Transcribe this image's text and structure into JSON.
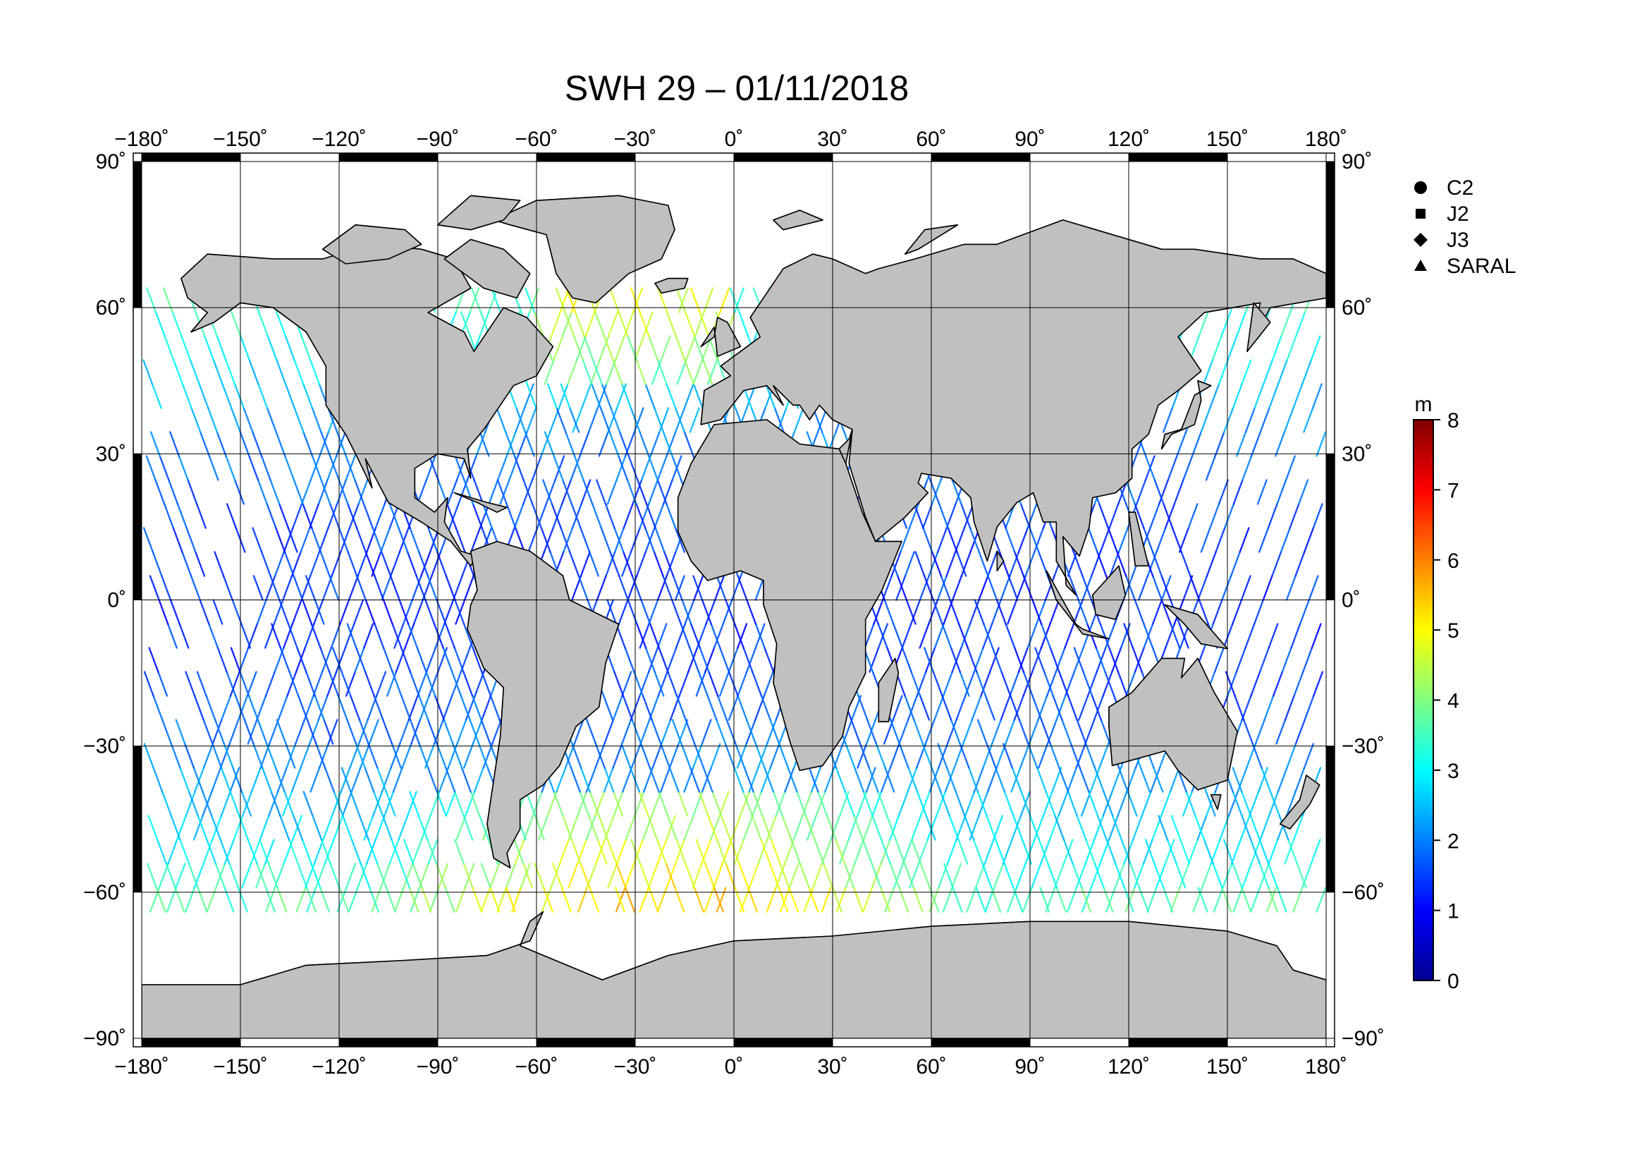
{
  "title": "SWH 29 – 01/11/2018",
  "map": {
    "lon_labels": [
      "−180˚",
      "−150˚",
      "−120˚",
      "−90˚",
      "−60˚",
      "−30˚",
      "0˚",
      "30˚",
      "60˚",
      "90˚",
      "120˚",
      "150˚",
      "180˚"
    ],
    "lat_labels": [
      "90˚",
      "60˚",
      "30˚",
      "0˚",
      "−30˚",
      "−60˚",
      "−90˚"
    ],
    "lon_range": [
      -180,
      180
    ],
    "lat_range": [
      -90,
      90
    ],
    "grid_spacing_deg": 30,
    "grid": true,
    "land_color": "#c0c0c0",
    "ocean_color": "#ffffff"
  },
  "legend": {
    "placement": "top-right",
    "items": [
      {
        "symbol": "circle",
        "label": "C2"
      },
      {
        "symbol": "square",
        "label": "J2"
      },
      {
        "symbol": "diamond",
        "label": "J3"
      },
      {
        "symbol": "triangle",
        "label": "SARAL"
      }
    ]
  },
  "colorbar": {
    "unit": "m",
    "min": 0,
    "max": 8,
    "ticks": [
      "0",
      "1",
      "2",
      "3",
      "4",
      "5",
      "6",
      "7",
      "8"
    ],
    "colormap": [
      "#00008f",
      "#0000ff",
      "#0080ff",
      "#00ffff",
      "#80ff80",
      "#ffff00",
      "#ff8000",
      "#ff0000",
      "#800000"
    ]
  }
}
